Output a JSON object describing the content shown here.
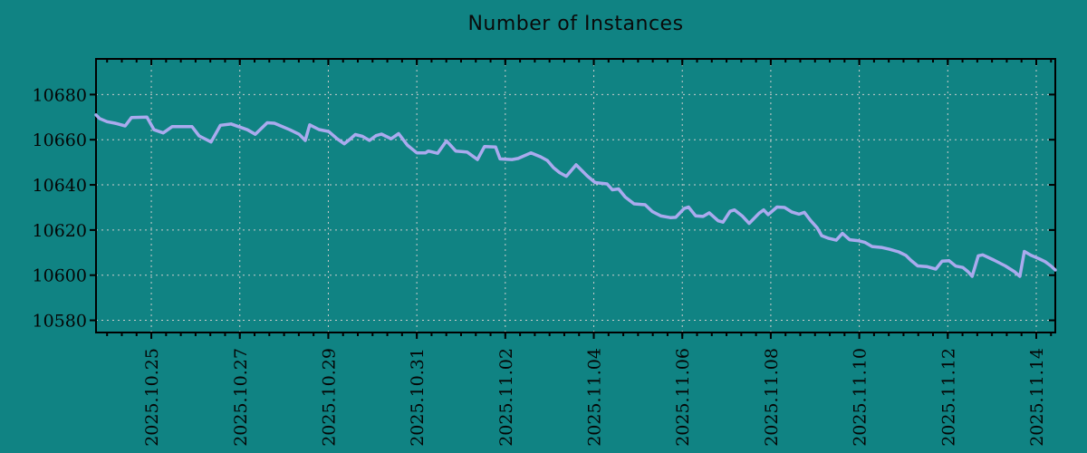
{
  "chart": {
    "background_color": "#108383",
    "line_color": "#aaaaee",
    "grid_color": "#cccccc",
    "axis_color": "#000000",
    "text_color": "#050505"
  },
  "chart_data": {
    "type": "line",
    "title": "Number of Instances",
    "series_name": "instances",
    "legend": "none",
    "grid": "dotted",
    "x_unit": "days since 2025-10-25 00:00",
    "xlim": [
      -1.25,
      20.43
    ],
    "ylim": [
      10574.6,
      10695.8
    ],
    "y_ticks": [
      10580,
      10600,
      10620,
      10640,
      10660,
      10680
    ],
    "x_minor_tick_interval_days": 0.33333,
    "x_major_ticks": [
      {
        "offset": 0,
        "label": "2025.10.25"
      },
      {
        "offset": 2,
        "label": "2025.10.27"
      },
      {
        "offset": 4,
        "label": "2025.10.29"
      },
      {
        "offset": 6,
        "label": "2025.10.31"
      },
      {
        "offset": 8,
        "label": "2025.11.02"
      },
      {
        "offset": 10,
        "label": "2025.11.04"
      },
      {
        "offset": 12,
        "label": "2025.11.06"
      },
      {
        "offset": 14,
        "label": "2025.11.08"
      },
      {
        "offset": 16,
        "label": "2025.11.10"
      },
      {
        "offset": 18,
        "label": "2025.11.12"
      },
      {
        "offset": 20,
        "label": "2025.11.14"
      }
    ],
    "points": [
      [
        -1.25,
        10671.0
      ],
      [
        -1.17,
        10669.4
      ],
      [
        -1.0,
        10668.0
      ],
      [
        -0.82,
        10667.3
      ],
      [
        -0.59,
        10666.1
      ],
      [
        -0.45,
        10669.8
      ],
      [
        -0.1,
        10670.0
      ],
      [
        0.06,
        10664.4
      ],
      [
        0.27,
        10663.0
      ],
      [
        0.47,
        10665.8
      ],
      [
        0.92,
        10665.8
      ],
      [
        1.08,
        10661.7
      ],
      [
        1.35,
        10659.0
      ],
      [
        1.56,
        10666.4
      ],
      [
        1.8,
        10667.0
      ],
      [
        2.17,
        10664.4
      ],
      [
        2.35,
        10662.4
      ],
      [
        2.62,
        10667.5
      ],
      [
        2.78,
        10667.3
      ],
      [
        3.13,
        10664.4
      ],
      [
        3.34,
        10662.4
      ],
      [
        3.48,
        10659.7
      ],
      [
        3.58,
        10666.6
      ],
      [
        3.79,
        10664.5
      ],
      [
        4.01,
        10663.6
      ],
      [
        4.2,
        10660.4
      ],
      [
        4.36,
        10658.2
      ],
      [
        4.5,
        10660.4
      ],
      [
        4.61,
        10662.3
      ],
      [
        4.77,
        10661.5
      ],
      [
        4.93,
        10659.7
      ],
      [
        5.08,
        10661.8
      ],
      [
        5.2,
        10662.5
      ],
      [
        5.42,
        10660.4
      ],
      [
        5.59,
        10662.7
      ],
      [
        5.79,
        10657.5
      ],
      [
        6.0,
        10654.2
      ],
      [
        6.2,
        10654.2
      ],
      [
        6.26,
        10655.0
      ],
      [
        6.47,
        10654.0
      ],
      [
        6.67,
        10659.5
      ],
      [
        6.88,
        10655.0
      ],
      [
        7.14,
        10654.5
      ],
      [
        7.37,
        10651.2
      ],
      [
        7.53,
        10657.0
      ],
      [
        7.78,
        10656.8
      ],
      [
        7.88,
        10651.5
      ],
      [
        8.15,
        10651.2
      ],
      [
        8.29,
        10651.7
      ],
      [
        8.58,
        10654.2
      ],
      [
        8.8,
        10652.4
      ],
      [
        8.95,
        10650.8
      ],
      [
        9.09,
        10647.6
      ],
      [
        9.23,
        10645.4
      ],
      [
        9.38,
        10643.8
      ],
      [
        9.6,
        10648.9
      ],
      [
        9.85,
        10644.0
      ],
      [
        10.03,
        10641.0
      ],
      [
        10.3,
        10640.4
      ],
      [
        10.42,
        10637.8
      ],
      [
        10.56,
        10638.2
      ],
      [
        10.71,
        10634.6
      ],
      [
        10.91,
        10631.6
      ],
      [
        11.16,
        10631.2
      ],
      [
        11.32,
        10628.2
      ],
      [
        11.52,
        10626.2
      ],
      [
        11.73,
        10625.5
      ],
      [
        11.85,
        10625.6
      ],
      [
        12.04,
        10629.5
      ],
      [
        12.14,
        10630.2
      ],
      [
        12.3,
        10626.3
      ],
      [
        12.47,
        10626.0
      ],
      [
        12.61,
        10627.6
      ],
      [
        12.81,
        10624.1
      ],
      [
        12.92,
        10623.5
      ],
      [
        13.08,
        10628.3
      ],
      [
        13.18,
        10628.9
      ],
      [
        13.35,
        10626.3
      ],
      [
        13.51,
        10622.9
      ],
      [
        13.74,
        10627.5
      ],
      [
        13.84,
        10628.9
      ],
      [
        13.94,
        10626.8
      ],
      [
        14.14,
        10630.2
      ],
      [
        14.31,
        10630.0
      ],
      [
        14.47,
        10628.0
      ],
      [
        14.64,
        10627.0
      ],
      [
        14.76,
        10627.8
      ],
      [
        14.9,
        10624.2
      ],
      [
        15.05,
        10620.9
      ],
      [
        15.15,
        10617.5
      ],
      [
        15.31,
        10616.3
      ],
      [
        15.48,
        10615.5
      ],
      [
        15.62,
        10618.5
      ],
      [
        15.78,
        10615.7
      ],
      [
        15.99,
        10615.2
      ],
      [
        16.13,
        10614.5
      ],
      [
        16.29,
        10612.7
      ],
      [
        16.5,
        10612.3
      ],
      [
        16.68,
        10611.5
      ],
      [
        16.89,
        10610.3
      ],
      [
        17.05,
        10608.8
      ],
      [
        17.17,
        10606.5
      ],
      [
        17.32,
        10604.1
      ],
      [
        17.52,
        10603.8
      ],
      [
        17.73,
        10602.7
      ],
      [
        17.87,
        10606.2
      ],
      [
        18.03,
        10606.4
      ],
      [
        18.18,
        10604.0
      ],
      [
        18.34,
        10603.4
      ],
      [
        18.46,
        10601.5
      ],
      [
        18.55,
        10599.5
      ],
      [
        18.69,
        10608.6
      ],
      [
        18.79,
        10609.0
      ],
      [
        19.04,
        10606.7
      ],
      [
        19.3,
        10604.1
      ],
      [
        19.51,
        10601.5
      ],
      [
        19.63,
        10599.5
      ],
      [
        19.73,
        10610.5
      ],
      [
        19.88,
        10608.8
      ],
      [
        20.06,
        10607.3
      ],
      [
        20.2,
        10606.0
      ],
      [
        20.33,
        10604.1
      ],
      [
        20.43,
        10602.3
      ]
    ]
  }
}
